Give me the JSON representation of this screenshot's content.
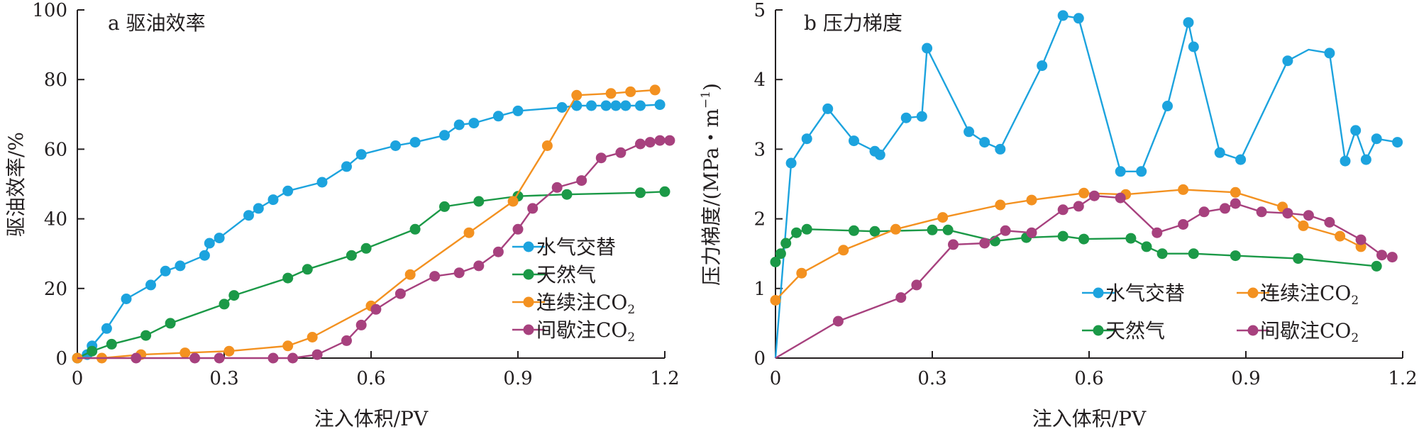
{
  "colors": {
    "axis": "#231f20",
    "water_gas": "#1ca3de",
    "natural_gas": "#1b9947",
    "co2_cont": "#f39120",
    "co2_int": "#a7417e"
  },
  "chart_data": [
    {
      "type": "line",
      "title": "a 驱油效率",
      "xlabel": "注入体积/PV",
      "ylabel": "驱油效率/%",
      "xlim": [
        0,
        1.2
      ],
      "ylim": [
        0,
        100
      ],
      "xticks": [
        "0",
        "0.3",
        "0.6",
        "0.9",
        "1.2"
      ],
      "yticks": [
        "0",
        "20",
        "40",
        "60",
        "80",
        "100"
      ],
      "legend_position": "bottom-right",
      "legend": [
        {
          "label": "水气交替"
        },
        {
          "label": "天然气"
        },
        {
          "label": "连续注CO",
          "sub": "2"
        },
        {
          "label": "间歇注CO",
          "sub": "2"
        }
      ],
      "series": [
        {
          "name": "水气交替",
          "color_key": "water_gas",
          "x": [
            0,
            0.02,
            0.03,
            0.06,
            0.1,
            0.15,
            0.18,
            0.21,
            0.26,
            0.27,
            0.29,
            0.35,
            0.37,
            0.4,
            0.43,
            0.5,
            0.55,
            0.58,
            0.65,
            0.69,
            0.75,
            0.78,
            0.81,
            0.86,
            0.9,
            0.99,
            1.02,
            1.05,
            1.08,
            1.1,
            1.12,
            1.15,
            1.19
          ],
          "y": [
            0,
            1,
            3.5,
            8.5,
            17,
            21,
            25,
            26.5,
            29.5,
            33,
            34.5,
            41,
            43,
            45.5,
            48,
            50.5,
            55,
            58.5,
            61,
            62,
            64,
            67,
            67.5,
            69.5,
            71,
            72,
            72.5,
            72.5,
            72.5,
            72.5,
            72.5,
            72.5,
            72.8
          ],
          "markers": [
            0,
            0.02,
            0.03,
            0.06,
            0.1,
            0.15,
            0.18,
            0.21,
            0.26,
            0.27,
            0.29,
            0.35,
            0.37,
            0.4,
            0.43,
            0.5,
            0.55,
            0.58,
            0.65,
            0.69,
            0.75,
            0.78,
            0.81,
            0.86,
            0.9,
            0.99,
            1.02,
            1.05,
            1.08,
            1.1,
            1.12,
            1.15,
            1.19
          ]
        },
        {
          "name": "天然气",
          "color_key": "natural_gas",
          "x": [
            0,
            0.03,
            0.07,
            0.14,
            0.19,
            0.3,
            0.32,
            0.43,
            0.47,
            0.56,
            0.59,
            0.69,
            0.75,
            0.82,
            0.9,
            1.0,
            1.15,
            1.2
          ],
          "y": [
            0,
            2,
            4,
            6.5,
            10,
            15.5,
            18,
            23,
            25.5,
            29.5,
            31.5,
            37,
            43.5,
            45,
            46.5,
            47,
            47.5,
            47.8
          ],
          "markers": [
            0,
            0.03,
            0.07,
            0.14,
            0.19,
            0.3,
            0.32,
            0.43,
            0.47,
            0.56,
            0.59,
            0.69,
            0.75,
            0.82,
            0.9,
            1.0,
            1.15,
            1.2
          ]
        },
        {
          "name": "连续注CO2",
          "color_key": "co2_cont",
          "x": [
            0,
            0.05,
            0.13,
            0.22,
            0.31,
            0.43,
            0.48,
            0.6,
            0.68,
            0.8,
            0.89,
            0.96,
            1.02,
            1.09,
            1.13,
            1.18
          ],
          "y": [
            0,
            0,
            1,
            1.5,
            2,
            3.5,
            6,
            15,
            24,
            36,
            45,
            61,
            75.5,
            76,
            76.5,
            77
          ],
          "markers": [
            0,
            0.05,
            0.13,
            0.22,
            0.31,
            0.43,
            0.48,
            0.6,
            0.68,
            0.8,
            0.89,
            0.96,
            1.02,
            1.09,
            1.13,
            1.18
          ]
        },
        {
          "name": "间歇注CO2",
          "color_key": "co2_int",
          "x": [
            0,
            0.12,
            0.24,
            0.29,
            0.4,
            0.44,
            0.49,
            0.55,
            0.58,
            0.61,
            0.66,
            0.73,
            0.78,
            0.82,
            0.86,
            0.9,
            0.93,
            0.98,
            1.03,
            1.07,
            1.11,
            1.15,
            1.17,
            1.19,
            1.21
          ],
          "y": [
            0,
            0,
            0,
            0,
            0,
            0,
            1,
            5,
            9.5,
            14,
            18.5,
            23.5,
            24.5,
            26.5,
            30.5,
            37,
            43,
            49,
            51,
            57.5,
            59,
            61.5,
            62,
            62.5,
            62.5
          ],
          "markers": [
            0.12,
            0.24,
            0.29,
            0.4,
            0.44,
            0.49,
            0.55,
            0.58,
            0.61,
            0.66,
            0.73,
            0.78,
            0.82,
            0.86,
            0.9,
            0.93,
            0.98,
            1.03,
            1.07,
            1.11,
            1.15,
            1.17,
            1.19,
            1.21
          ]
        }
      ]
    },
    {
      "type": "line",
      "title": "b 压力梯度",
      "xlabel": "注入体积/PV",
      "ylabel": "压力梯度/(MPa・m",
      "ylabel_sup": "−1",
      "ylabel_end": ")",
      "xlim": [
        0,
        1.2
      ],
      "ylim": [
        0,
        5
      ],
      "xticks": [
        "0",
        "0.3",
        "0.6",
        "0.9",
        "1.2"
      ],
      "yticks": [
        "0",
        "1",
        "2",
        "3",
        "4",
        "5"
      ],
      "legend_position": "bottom-right",
      "legend": [
        {
          "label": "水气交替"
        },
        {
          "label": "连续注CO",
          "sub": "2"
        },
        {
          "label": "天然气"
        },
        {
          "label": "间歇注CO",
          "sub": "2"
        }
      ],
      "series": [
        {
          "name": "水气交替",
          "color_key": "water_gas",
          "x": [
            0,
            0.03,
            0.06,
            0.1,
            0.15,
            0.19,
            0.2,
            0.25,
            0.28,
            0.29,
            0.37,
            0.4,
            0.43,
            0.51,
            0.55,
            0.58,
            0.66,
            0.7,
            0.75,
            0.79,
            0.8,
            0.85,
            0.89,
            0.98,
            1.02,
            1.06,
            1.09,
            1.11,
            1.13,
            1.15,
            1.19
          ],
          "y": [
            0,
            2.8,
            3.15,
            3.58,
            3.12,
            2.97,
            2.92,
            3.45,
            3.47,
            4.45,
            3.25,
            3.1,
            3.0,
            4.2,
            4.92,
            4.88,
            2.68,
            2.68,
            3.62,
            4.82,
            4.47,
            2.95,
            2.85,
            4.27,
            4.43,
            4.38,
            2.83,
            3.27,
            2.85,
            3.15,
            3.1
          ],
          "markers": [
            0.03,
            0.06,
            0.1,
            0.15,
            0.19,
            0.2,
            0.25,
            0.28,
            0.29,
            0.37,
            0.4,
            0.43,
            0.51,
            0.55,
            0.58,
            0.66,
            0.7,
            0.75,
            0.79,
            0.8,
            0.85,
            0.89,
            0.98,
            1.06,
            1.09,
            1.11,
            1.13,
            1.15,
            1.19
          ]
        },
        {
          "name": "天然气",
          "color_key": "natural_gas",
          "x": [
            0,
            0.01,
            0.02,
            0.04,
            0.06,
            0.15,
            0.19,
            0.3,
            0.33,
            0.42,
            0.48,
            0.55,
            0.59,
            0.68,
            0.71,
            0.74,
            0.8,
            0.88,
            1.0,
            1.15
          ],
          "y": [
            1.38,
            1.5,
            1.65,
            1.8,
            1.85,
            1.83,
            1.82,
            1.84,
            1.84,
            1.68,
            1.73,
            1.75,
            1.71,
            1.72,
            1.6,
            1.5,
            1.5,
            1.47,
            1.43,
            1.32
          ],
          "markers": [
            0,
            0.01,
            0.02,
            0.04,
            0.06,
            0.15,
            0.19,
            0.3,
            0.33,
            0.42,
            0.48,
            0.55,
            0.59,
            0.68,
            0.71,
            0.74,
            0.8,
            0.88,
            1.0,
            1.15
          ]
        },
        {
          "name": "连续注CO2",
          "color_key": "co2_cont",
          "x": [
            0,
            0.05,
            0.13,
            0.23,
            0.32,
            0.43,
            0.49,
            0.59,
            0.67,
            0.78,
            0.88,
            0.97,
            1.01,
            1.08,
            1.12
          ],
          "y": [
            0.83,
            1.22,
            1.55,
            1.85,
            2.02,
            2.2,
            2.27,
            2.37,
            2.35,
            2.42,
            2.38,
            2.17,
            1.9,
            1.75,
            1.6
          ],
          "markers": [
            0,
            0.05,
            0.13,
            0.23,
            0.32,
            0.43,
            0.49,
            0.59,
            0.67,
            0.78,
            0.88,
            0.97,
            1.01,
            1.08,
            1.12
          ]
        },
        {
          "name": "间歇注CO2",
          "color_key": "co2_int",
          "x": [
            0,
            0.12,
            0.24,
            0.27,
            0.34,
            0.4,
            0.44,
            0.49,
            0.55,
            0.58,
            0.61,
            0.66,
            0.73,
            0.78,
            0.82,
            0.86,
            0.88,
            0.93,
            0.98,
            1.02,
            1.06,
            1.12,
            1.16,
            1.18
          ],
          "y": [
            0,
            0.53,
            0.87,
            1.05,
            1.63,
            1.65,
            1.83,
            1.8,
            2.13,
            2.18,
            2.33,
            2.3,
            1.8,
            1.92,
            2.1,
            2.15,
            2.22,
            2.1,
            2.08,
            2.05,
            1.95,
            1.7,
            1.48,
            1.45
          ],
          "markers": [
            0.12,
            0.24,
            0.27,
            0.34,
            0.4,
            0.44,
            0.49,
            0.55,
            0.58,
            0.61,
            0.66,
            0.73,
            0.78,
            0.82,
            0.86,
            0.88,
            0.93,
            0.98,
            1.02,
            1.06,
            1.12,
            1.16,
            1.18
          ]
        }
      ]
    }
  ]
}
